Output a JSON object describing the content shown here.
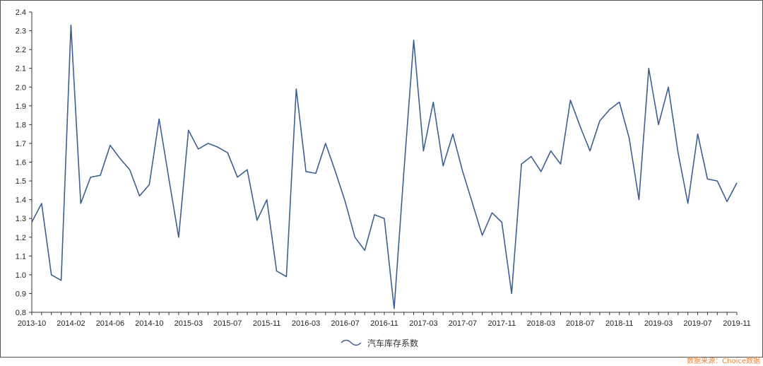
{
  "chart_data": {
    "type": "line",
    "title": "",
    "xlabel": "",
    "ylabel": "",
    "ylim": [
      0.8,
      2.4
    ],
    "y_ticks": [
      0.8,
      0.9,
      1.0,
      1.1,
      1.2,
      1.3,
      1.4,
      1.5,
      1.6,
      1.7,
      1.8,
      1.9,
      2.0,
      2.1,
      2.2,
      2.3,
      2.4
    ],
    "x_tick_labels": [
      "2013-10",
      "2014-02",
      "2014-06",
      "2014-10",
      "2015-03",
      "2015-07",
      "2015-11",
      "2016-03",
      "2016-07",
      "2016-11",
      "2017-03",
      "2017-07",
      "2017-11",
      "2018-03",
      "2018-07",
      "2018-11",
      "2019-03",
      "2019-07",
      "2019-11"
    ],
    "x_tick_indices": [
      0,
      4,
      8,
      12,
      16,
      20,
      24,
      28,
      32,
      36,
      40,
      44,
      48,
      52,
      56,
      60,
      64,
      68,
      72
    ],
    "grid": false,
    "legend_position": "bottom-center",
    "line_color": "#3d5f8f",
    "series": [
      {
        "name": "汽车库存系数",
        "values": [
          1.28,
          1.38,
          1.0,
          0.97,
          2.33,
          1.38,
          1.52,
          1.53,
          1.69,
          1.62,
          1.56,
          1.42,
          1.48,
          1.83,
          1.51,
          1.2,
          1.77,
          1.67,
          1.7,
          1.68,
          1.65,
          1.52,
          1.56,
          1.29,
          1.4,
          1.02,
          0.99,
          1.99,
          1.55,
          1.54,
          1.7,
          1.55,
          1.39,
          1.2,
          1.13,
          1.32,
          1.3,
          0.82,
          1.55,
          2.25,
          1.66,
          1.92,
          1.58,
          1.75,
          1.55,
          1.38,
          1.21,
          1.33,
          1.28,
          0.9,
          1.59,
          1.63,
          1.55,
          1.66,
          1.59,
          1.93,
          1.79,
          1.66,
          1.82,
          1.88,
          1.92,
          1.73,
          1.4,
          2.1,
          1.8,
          2.0,
          1.65,
          1.38,
          1.75,
          1.51,
          1.5,
          1.39,
          1.49
        ]
      }
    ]
  },
  "source_text": "数据来源：Choice数据"
}
